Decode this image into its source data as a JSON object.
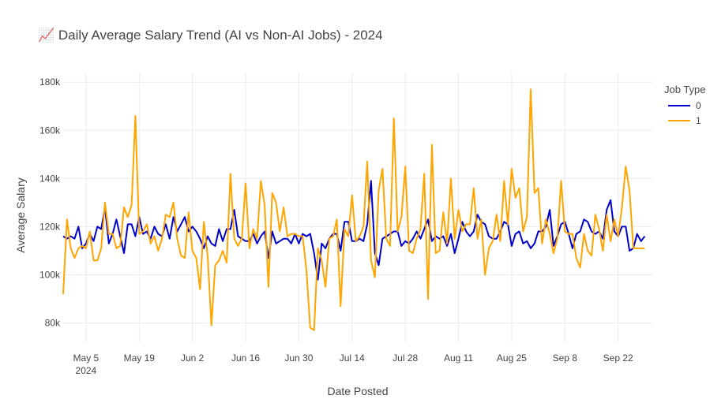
{
  "chart_data": {
    "type": "line",
    "title": "📈 Daily Average Salary Trend (AI vs Non-AI Jobs) - 2024",
    "xlabel": "Date Posted",
    "ylabel": "Average Salary",
    "x_start": "2024-04-29",
    "x_range": [
      "2024-04-29",
      "2024-10-01"
    ],
    "ylim": [
      72000,
      184000
    ],
    "y_ticks": [
      80000,
      100000,
      120000,
      140000,
      160000,
      180000
    ],
    "y_tick_labels": [
      "80k",
      "100k",
      "120k",
      "140k",
      "160k",
      "180k"
    ],
    "x_ticks": [
      {
        "date": "2024-05-05",
        "label": "May 5",
        "sublabel": "2024"
      },
      {
        "date": "2024-05-19",
        "label": "May 19"
      },
      {
        "date": "2024-06-02",
        "label": "Jun 2"
      },
      {
        "date": "2024-06-16",
        "label": "Jun 16"
      },
      {
        "date": "2024-06-30",
        "label": "Jun 30"
      },
      {
        "date": "2024-07-14",
        "label": "Jul 14"
      },
      {
        "date": "2024-07-28",
        "label": "Jul 28"
      },
      {
        "date": "2024-08-11",
        "label": "Aug 11"
      },
      {
        "date": "2024-08-25",
        "label": "Aug 25"
      },
      {
        "date": "2024-09-08",
        "label": "Sep 8"
      },
      {
        "date": "2024-09-22",
        "label": "Sep 22"
      }
    ],
    "grid": true,
    "legend": {
      "title": "Job Type",
      "position": "top-right"
    },
    "series": [
      {
        "name": "0",
        "color": "#0000cc",
        "values": [
          116000,
          115000,
          116000,
          115000,
          120000,
          111000,
          113000,
          117000,
          114000,
          120000,
          119000,
          128000,
          113000,
          117000,
          123000,
          116000,
          109000,
          121000,
          121000,
          116000,
          124000,
          117000,
          118000,
          115000,
          120000,
          117000,
          116000,
          121000,
          115000,
          124000,
          118000,
          121000,
          124000,
          118000,
          120000,
          118000,
          115000,
          111000,
          116000,
          113000,
          112000,
          119000,
          114000,
          119000,
          119000,
          127000,
          116000,
          115000,
          114000,
          114000,
          117000,
          113000,
          116000,
          118000,
          107000,
          118000,
          113000,
          114000,
          115000,
          115000,
          113000,
          117000,
          113000,
          117000,
          116000,
          117000,
          109000,
          98000,
          113000,
          111000,
          115000,
          117000,
          117000,
          110000,
          122000,
          122000,
          114000,
          114000,
          115000,
          114000,
          121000,
          139000,
          109000,
          104000,
          115000,
          116000,
          117000,
          118000,
          118000,
          112000,
          114000,
          113000,
          115000,
          118000,
          115000,
          119000,
          123000,
          114000,
          116000,
          115000,
          116000,
          112000,
          117000,
          109000,
          115000,
          122000,
          118000,
          116000,
          118000,
          125000,
          122000,
          121000,
          116000,
          115000,
          115000,
          118000,
          122000,
          121000,
          112000,
          117000,
          118000,
          113000,
          114000,
          111000,
          113000,
          118000,
          118000,
          120000,
          127000,
          112000,
          116000,
          121000,
          122000,
          117000,
          111000,
          117000,
          118000,
          123000,
          122000,
          118000,
          117000,
          118000,
          115000,
          127000,
          131000,
          118000,
          116000,
          120000,
          120000,
          110000,
          111000,
          117000,
          114000,
          116000
        ]
      },
      {
        "name": "1",
        "color": "#ffa500",
        "values": [
          92000,
          123000,
          111000,
          107000,
          111000,
          112000,
          111000,
          118000,
          106000,
          106000,
          111000,
          130000,
          117000,
          117000,
          111000,
          112000,
          128000,
          124000,
          129000,
          166000,
          117000,
          118000,
          121000,
          113000,
          116000,
          110000,
          115000,
          125000,
          124000,
          130000,
          115000,
          108000,
          107000,
          126000,
          110000,
          107000,
          94000,
          122000,
          108000,
          79000,
          104000,
          106000,
          110000,
          105000,
          142000,
          115000,
          112000,
          115000,
          138000,
          111000,
          119000,
          115000,
          139000,
          129000,
          95000,
          134000,
          130000,
          118000,
          128000,
          116000,
          117000,
          117000,
          116000,
          116000,
          102000,
          78000,
          77000,
          111000,
          106000,
          95000,
          115000,
          116000,
          123000,
          87000,
          119000,
          116000,
          133000,
          114000,
          116000,
          120000,
          147000,
          106000,
          99000,
          135000,
          144000,
          115000,
          112000,
          165000,
          118000,
          124000,
          145000,
          110000,
          109000,
          115000,
          119000,
          142000,
          90000,
          154000,
          109000,
          110000,
          126000,
          113000,
          140000,
          115000,
          127000,
          118000,
          121000,
          121000,
          136000,
          115000,
          123000,
          100000,
          111000,
          114000,
          125000,
          114000,
          139000,
          121000,
          144000,
          132000,
          136000,
          118000,
          124000,
          177000,
          134000,
          136000,
          113000,
          123000,
          117000,
          109000,
          115000,
          139000,
          118000,
          117000,
          117000,
          107000,
          103000,
          117000,
          110000,
          108000,
          125000,
          119000,
          110000,
          125000,
          114000,
          123000,
          116000,
          128000,
          145000,
          135000,
          111000,
          111000,
          111000,
          111000
        ]
      }
    ]
  }
}
